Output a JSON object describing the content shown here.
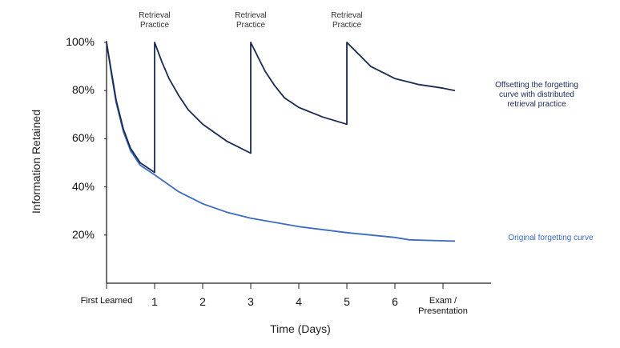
{
  "chart_data": {
    "type": "line",
    "y_label": "Information Retained",
    "x_label": "Time (Days)",
    "annotations": [
      "Retrieval Practice",
      "Retrieval Practice",
      "Retrieval Practice"
    ],
    "xlim": [
      0,
      8
    ],
    "ylim": [
      0,
      100
    ],
    "xticks": [
      {
        "value": 0,
        "label": "First Learned"
      },
      1,
      2,
      3,
      4,
      5,
      6,
      {
        "value": 7,
        "label": "Exam / Presentation"
      }
    ],
    "yticks": [
      {
        "value": 20,
        "label": "20%"
      },
      {
        "value": 40,
        "label": "40%"
      },
      {
        "value": 60,
        "label": "60%"
      },
      {
        "value": 80,
        "label": "80%"
      },
      {
        "value": 100,
        "label": "100%"
      }
    ],
    "series": [
      {
        "name": "Offsetting the forgetting curve with distributed retrieval practice",
        "color": "#1b2a52",
        "x": [
          0,
          0.1,
          0.2,
          0.35,
          0.5,
          0.7,
          1,
          1,
          1.15,
          1.3,
          1.5,
          1.7,
          2,
          2.5,
          3,
          3,
          3.15,
          3.3,
          3.5,
          3.7,
          4,
          4.5,
          5,
          5,
          5.2,
          5.5,
          6,
          6.5,
          7,
          7.25
        ],
        "values": [
          100,
          88,
          76,
          64,
          56,
          50,
          46,
          100,
          92,
          85,
          78,
          72,
          66,
          59,
          54,
          100,
          94,
          88,
          82,
          77,
          73,
          69,
          66,
          100,
          96,
          90,
          85,
          82.5,
          81,
          80
        ]
      },
      {
        "name": "Original forgetting curve",
        "color": "#3a6cc0",
        "x": [
          0,
          0.1,
          0.2,
          0.35,
          0.5,
          0.7,
          1,
          1.5,
          2,
          2.5,
          3,
          4,
          5,
          6,
          6.3,
          7,
          7.25
        ],
        "values": [
          100,
          87,
          75,
          63,
          55,
          49,
          45,
          38,
          33,
          29.5,
          27,
          23.5,
          21,
          19,
          18,
          17.6,
          17.5
        ]
      }
    ]
  }
}
